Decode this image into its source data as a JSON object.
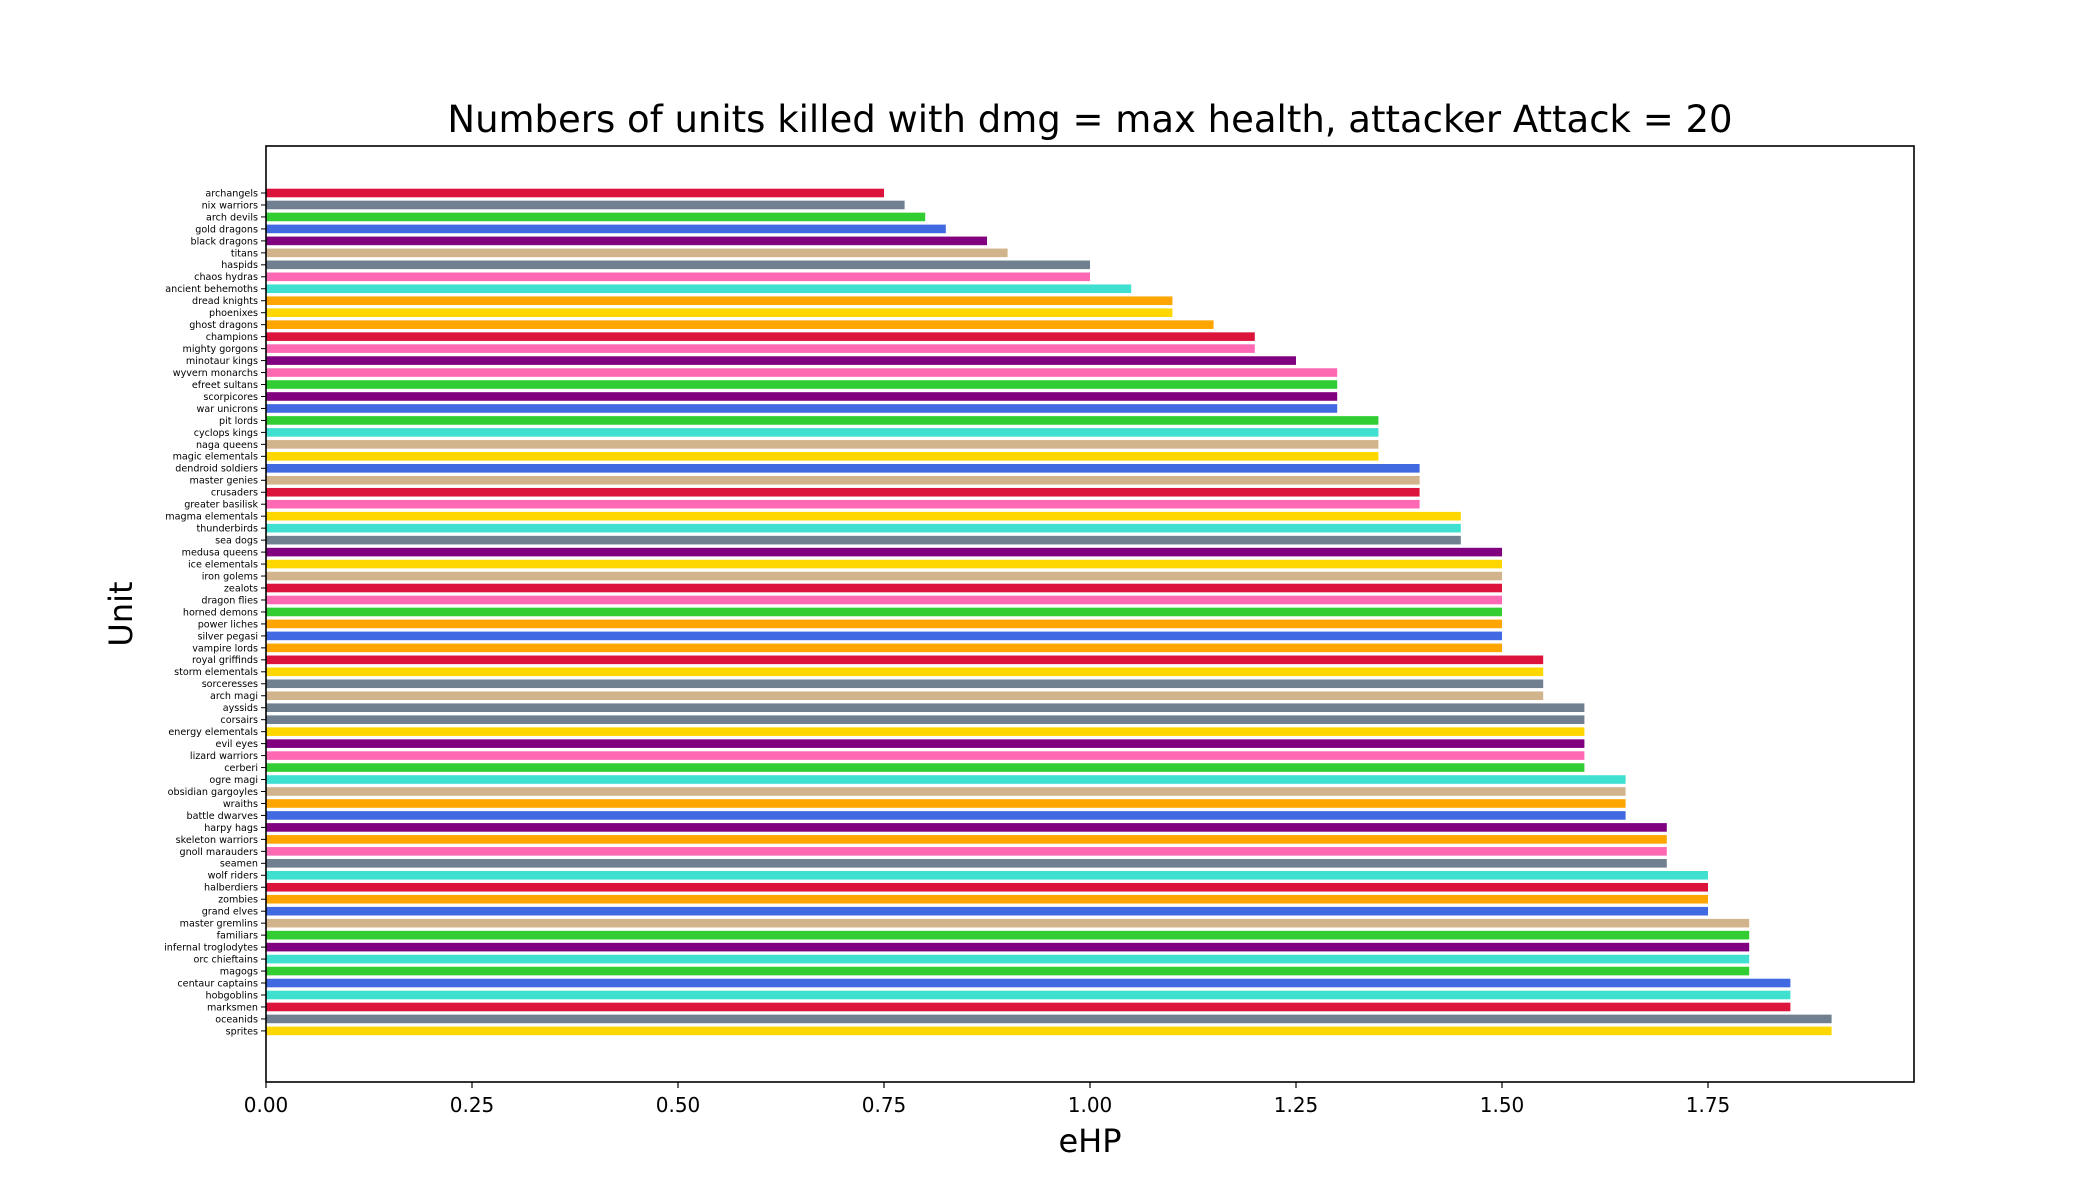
{
  "chart_data": {
    "type": "bar",
    "orientation": "horizontal",
    "title": "Numbers of units killed with dmg = max health, attacker Attack = 20",
    "xlabel": "eHP",
    "ylabel": "Unit",
    "xlim": [
      0,
      2.0
    ],
    "xticks": [
      "0.00",
      "0.25",
      "0.50",
      "0.75",
      "1.00",
      "1.25",
      "1.50",
      "1.75"
    ],
    "grid": false,
    "legend": "none",
    "categories": [
      "archangels",
      "nix warriors",
      "arch devils",
      "gold dragons",
      "black dragons",
      "titans",
      "haspids",
      "chaos hydras",
      "ancient behemoths",
      "dread knights",
      "phoenixes",
      "ghost dragons",
      "champions",
      "mighty gorgons",
      "minotaur kings",
      "wyvern monarchs",
      "efreet sultans",
      "scorpicores",
      "war unicrons",
      "pit lords",
      "cyclops kings",
      "naga queens",
      "magic elementals",
      "dendroid soldiers",
      "master genies",
      "crusaders",
      "greater basilisk",
      "magma elementals",
      "thunderbirds",
      "sea dogs",
      "medusa queens",
      "ice elementals",
      "iron golems",
      "zealots",
      "dragon flies",
      "horned demons",
      "power liches",
      "silver pegasi",
      "vampire lords",
      "royal griffinds",
      "storm elementals",
      "sorceresses",
      "arch magi",
      "ayssids",
      "corsairs",
      "energy elementals",
      "evil eyes",
      "lizard warriors",
      "cerberi",
      "ogre magi",
      "obsidian gargoyles",
      "wraiths",
      "battle dwarves",
      "harpy hags",
      "skeleton warriors",
      "gnoll marauders",
      "seamen",
      "wolf riders",
      "halberdiers",
      "zombies",
      "grand elves",
      "master gremlins",
      "familiars",
      "infernal troglodytes",
      "orc chieftains",
      "magogs",
      "centaur captains",
      "hobgoblins",
      "marksmen",
      "oceanids",
      "sprites"
    ],
    "values": [
      0.75,
      0.775,
      0.8,
      0.825,
      0.875,
      0.9,
      1.0,
      1.0,
      1.05,
      1.1,
      1.1,
      1.15,
      1.2,
      1.2,
      1.25,
      1.3,
      1.3,
      1.3,
      1.3,
      1.35,
      1.35,
      1.35,
      1.35,
      1.4,
      1.4,
      1.4,
      1.4,
      1.45,
      1.45,
      1.45,
      1.5,
      1.5,
      1.5,
      1.5,
      1.5,
      1.5,
      1.5,
      1.5,
      1.5,
      1.55,
      1.55,
      1.55,
      1.55,
      1.6,
      1.6,
      1.6,
      1.6,
      1.6,
      1.6,
      1.65,
      1.65,
      1.65,
      1.65,
      1.7,
      1.7,
      1.7,
      1.7,
      1.75,
      1.75,
      1.75,
      1.75,
      1.8,
      1.8,
      1.8,
      1.8,
      1.8,
      1.85,
      1.85,
      1.85,
      1.9,
      1.9
    ],
    "colors": [
      "#dc143c",
      "#708090",
      "#32cd32",
      "#4169e1",
      "#800080",
      "#d2b48c",
      "#708090",
      "#ff69b4",
      "#40e0d0",
      "#ffa500",
      "#ffd700",
      "#ffa500",
      "#dc143c",
      "#ff69b4",
      "#800080",
      "#ff69b4",
      "#32cd32",
      "#800080",
      "#4169e1",
      "#32cd32",
      "#40e0d0",
      "#d2b48c",
      "#ffd700",
      "#4169e1",
      "#d2b48c",
      "#dc143c",
      "#ff69b4",
      "#ffd700",
      "#40e0d0",
      "#708090",
      "#800080",
      "#ffd700",
      "#d2b48c",
      "#dc143c",
      "#ff69b4",
      "#32cd32",
      "#ffa500",
      "#4169e1",
      "#ffa500",
      "#dc143c",
      "#ffd700",
      "#708090",
      "#d2b48c",
      "#708090",
      "#708090",
      "#ffd700",
      "#800080",
      "#ff69b4",
      "#32cd32",
      "#40e0d0",
      "#d2b48c",
      "#ffa500",
      "#4169e1",
      "#800080",
      "#ffa500",
      "#ff69b4",
      "#708090",
      "#40e0d0",
      "#dc143c",
      "#ffa500",
      "#4169e1",
      "#d2b48c",
      "#32cd32",
      "#800080",
      "#40e0d0",
      "#32cd32",
      "#4169e1",
      "#40e0d0",
      "#dc143c",
      "#708090",
      "#ffd700"
    ]
  }
}
